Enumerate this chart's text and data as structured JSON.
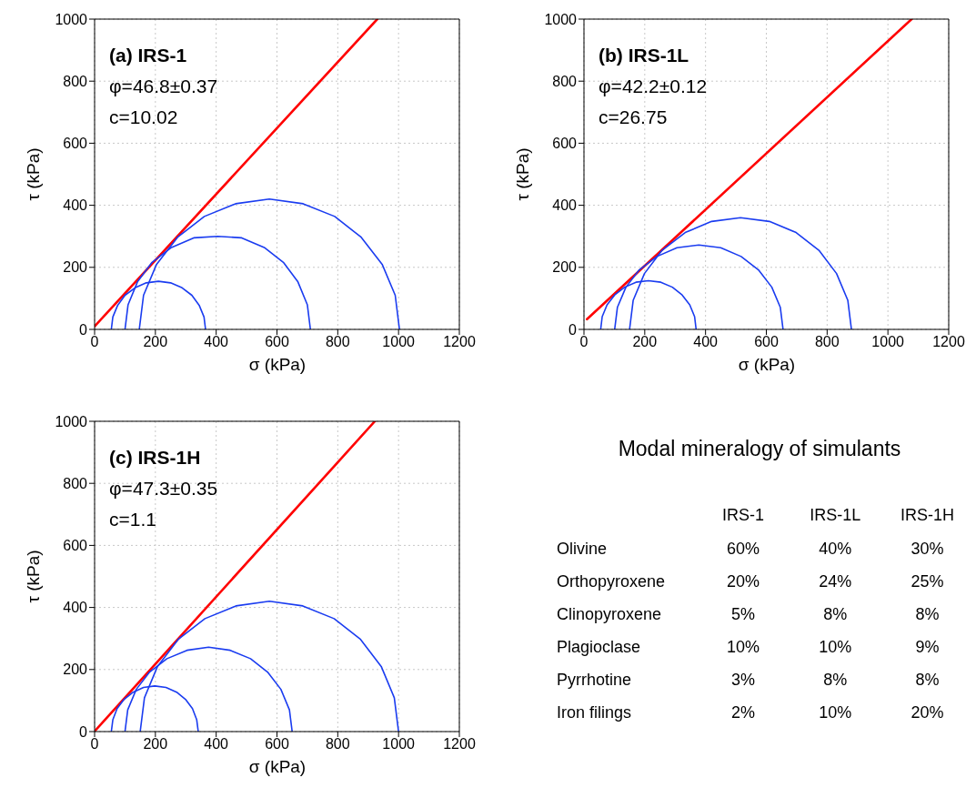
{
  "chart_data": [
    {
      "type": "line",
      "title": "(a) IRS-1",
      "annotations": [
        "φ=46.8±0.37",
        "c=10.02"
      ],
      "xlabel": "σ (kPa)",
      "ylabel": "τ (kPa)",
      "xlim": [
        0,
        1200
      ],
      "xticks": [
        0,
        200,
        400,
        600,
        800,
        1000,
        1200
      ],
      "ylim": [
        0,
        1000
      ],
      "yticks": [
        0,
        200,
        400,
        600,
        800,
        1000
      ],
      "grid": true,
      "series": [
        {
          "color": "#ff0000",
          "x": [
            0,
            930
          ],
          "values": [
            10,
            1000
          ]
        },
        {
          "color": "#1a3cf0",
          "x": [
            365,
            360,
            344,
            320,
            288,
            250,
            210,
            170,
            133,
            100,
            76,
            60,
            55
          ],
          "values": [
            0,
            40,
            78,
            110,
            134,
            150,
            155,
            150,
            134,
            110,
            78,
            40,
            0
          ]
        },
        {
          "color": "#1a3cf0",
          "x": [
            710,
            700,
            669,
            621,
            558,
            484,
            405,
            326,
            253,
            189,
            141,
            110,
            100
          ],
          "values": [
            0,
            79,
            153,
            216,
            264,
            295,
            300,
            295,
            264,
            216,
            153,
            79,
            0
          ]
        },
        {
          "color": "#1a3cf0",
          "x": [
            1003,
            989,
            946,
            877,
            790,
            686,
            575,
            464,
            361,
            273,
            204,
            161,
            147
          ],
          "values": [
            0,
            110,
            210,
            297,
            364,
            405,
            420,
            405,
            364,
            297,
            210,
            110,
            0
          ]
        }
      ]
    },
    {
      "type": "line",
      "title": "(b) IRS-1L",
      "annotations": [
        "φ=42.2±0.12",
        "c=26.75"
      ],
      "xlabel": "σ (kPa)",
      "ylabel": "τ (kPa)",
      "xlim": [
        0,
        1200
      ],
      "xticks": [
        0,
        200,
        400,
        600,
        800,
        1000,
        1200
      ],
      "ylim": [
        0,
        1000
      ],
      "yticks": [
        0,
        200,
        400,
        600,
        800,
        1000
      ],
      "grid": true,
      "series": [
        {
          "color": "#ff0000",
          "x": [
            10,
            1078
          ],
          "values": [
            33,
            1000
          ]
        },
        {
          "color": "#1a3cf0",
          "x": [
            369,
            364,
            348,
            323,
            291,
            253,
            212,
            171,
            134,
            101,
            76,
            60,
            55
          ],
          "values": [
            0,
            41,
            79,
            111,
            136,
            152,
            157,
            152,
            136,
            111,
            79,
            41,
            0
          ]
        },
        {
          "color": "#1a3cf0",
          "x": [
            655,
            646,
            618,
            574,
            517,
            450,
            378,
            306,
            240,
            182,
            138,
            110,
            101
          ],
          "values": [
            0,
            71,
            136,
            192,
            235,
            263,
            272,
            263,
            235,
            192,
            136,
            71,
            0
          ]
        },
        {
          "color": "#1a3cf0",
          "x": [
            880,
            868,
            831,
            773,
            698,
            610,
            515,
            420,
            333,
            257,
            199,
            162,
            150
          ],
          "values": [
            0,
            94,
            180,
            255,
            312,
            348,
            360,
            348,
            312,
            255,
            180,
            94,
            0
          ]
        }
      ]
    },
    {
      "type": "line",
      "title": "(c) IRS-1H",
      "annotations": [
        "φ=47.3±0.35",
        "c=1.1"
      ],
      "xlabel": "σ (kPa)",
      "ylabel": "τ (kPa)",
      "xlim": [
        0,
        1200
      ],
      "xticks": [
        0,
        200,
        400,
        600,
        800,
        1000,
        1200
      ],
      "ylim": [
        0,
        1000
      ],
      "yticks": [
        0,
        200,
        400,
        600,
        800,
        1000
      ],
      "grid": true,
      "series": [
        {
          "color": "#ff0000",
          "x": [
            0,
            922
          ],
          "values": [
            1,
            1000
          ]
        },
        {
          "color": "#1a3cf0",
          "x": [
            341,
            336,
            322,
            299,
            270,
            235,
            198,
            161,
            127,
            97,
            74,
            60,
            55
          ],
          "values": [
            0,
            38,
            74,
            104,
            127,
            142,
            147,
            142,
            127,
            104,
            74,
            38,
            0
          ]
        },
        {
          "color": "#1a3cf0",
          "x": [
            650,
            641,
            613,
            569,
            513,
            446,
            375,
            304,
            238,
            181,
            137,
            109,
            100
          ],
          "values": [
            0,
            70,
            136,
            192,
            235,
            262,
            272,
            262,
            235,
            192,
            136,
            70,
            0
          ]
        },
        {
          "color": "#1a3cf0",
          "x": [
            1000,
            986,
            943,
            875,
            788,
            685,
            575,
            465,
            363,
            275,
            207,
            164,
            150
          ],
          "values": [
            0,
            109,
            210,
            297,
            364,
            405,
            420,
            405,
            364,
            297,
            210,
            109,
            0
          ]
        }
      ]
    },
    {
      "type": "other",
      "title": "Modal mineralogy of simulants",
      "categories": [
        "IRS-1",
        "IRS-1L",
        "IRS-1H"
      ],
      "y_categories": [
        "Olivine",
        "Orthopyroxene",
        "Clinopyroxene",
        "Plagioclase",
        "Pyrrhotine",
        "Iron filings"
      ],
      "cell_labels": [
        [
          "60%",
          "40%",
          "30%"
        ],
        [
          "20%",
          "24%",
          "25%"
        ],
        [
          "5%",
          "8%",
          "8%"
        ],
        [
          "10%",
          "10%",
          "9%"
        ],
        [
          "3%",
          "8%",
          "8%"
        ],
        [
          "2%",
          "10%",
          "20%"
        ]
      ]
    }
  ]
}
